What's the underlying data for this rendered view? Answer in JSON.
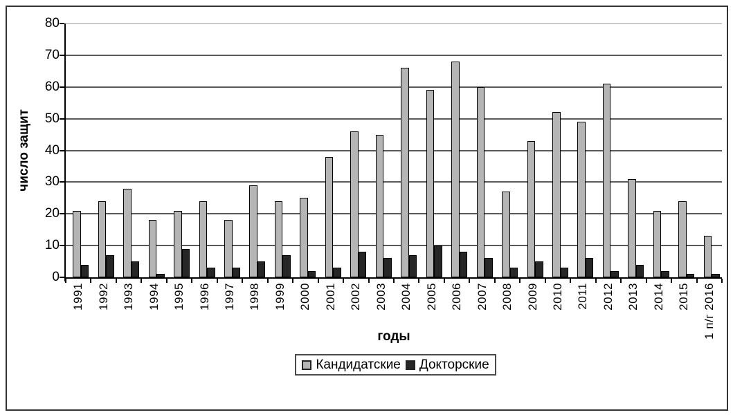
{
  "chart_data": {
    "type": "bar",
    "title": "",
    "xlabel": "годы",
    "ylabel": "число защит",
    "ylim": [
      0,
      80
    ],
    "yticks": [
      0,
      10,
      20,
      30,
      40,
      50,
      60,
      70,
      80
    ],
    "grid": true,
    "legend_position": "bottom",
    "categories": [
      "1991",
      "1992",
      "1993",
      "1994",
      "1995",
      "1996",
      "1997",
      "1998",
      "1999",
      "2000",
      "2001",
      "2002",
      "2003",
      "2004",
      "2005",
      "2006",
      "2007",
      "2008",
      "2009",
      "2010",
      "2011",
      "2012",
      "2013",
      "2014",
      "2015",
      "1 п/г 2016"
    ],
    "series": [
      {
        "name": "Кандидатские",
        "color": "#b5b5b5",
        "values": [
          21,
          24,
          28,
          18,
          21,
          24,
          18,
          29,
          24,
          25,
          38,
          46,
          45,
          66,
          59,
          68,
          60,
          27,
          43,
          52,
          49,
          61,
          31,
          21,
          24,
          13
        ]
      },
      {
        "name": "Докторские",
        "color": "#262626",
        "values": [
          4,
          7,
          5,
          1,
          9,
          3,
          3,
          5,
          7,
          2,
          3,
          8,
          6,
          7,
          10,
          8,
          6,
          3,
          5,
          3,
          6,
          2,
          4,
          2,
          1,
          1
        ]
      }
    ]
  },
  "colors": {
    "background": "#ffffff",
    "figure_border": "#333333",
    "axis": "#000000",
    "gridline": "#595959",
    "gridline_top": "#c9c9c9",
    "bar_outline": "#000000"
  }
}
